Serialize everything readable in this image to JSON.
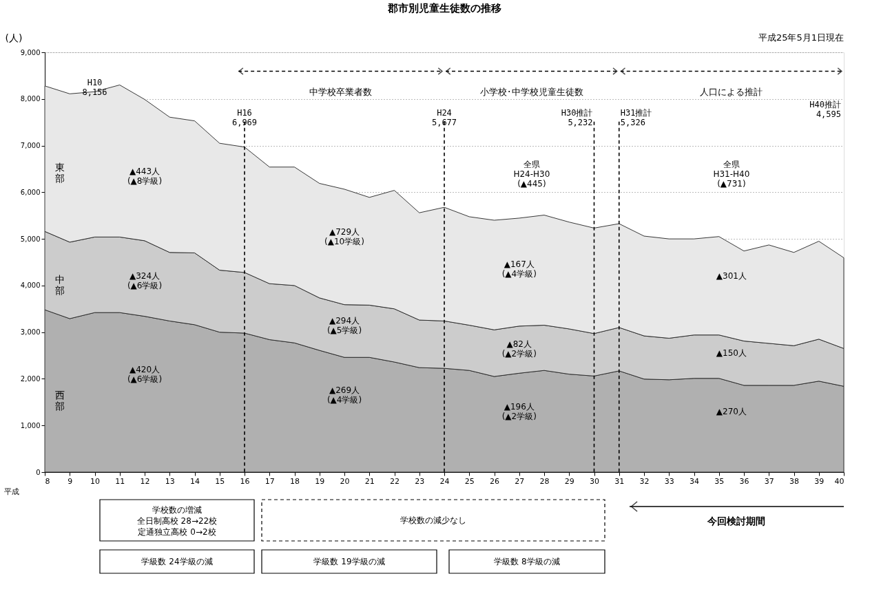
{
  "chart_data": {
    "type": "area",
    "stacked": true,
    "title": "郡市別児童生徒数の推移",
    "xlabel": "平成",
    "ylabel": "(人)",
    "x": [
      8,
      9,
      10,
      11,
      12,
      13,
      14,
      15,
      16,
      17,
      18,
      19,
      20,
      21,
      22,
      23,
      24,
      25,
      26,
      27,
      28,
      29,
      30,
      31,
      32,
      33,
      34,
      35,
      36,
      37,
      38,
      39,
      40
    ],
    "series": [
      {
        "name": "西部",
        "color": "#b0b0b0",
        "values": [
          3480,
          3290,
          3420,
          3420,
          3340,
          3240,
          3160,
          3000,
          2980,
          2840,
          2770,
          2610,
          2460,
          2460,
          2360,
          2240,
          2225,
          2180,
          2050,
          2120,
          2180,
          2100,
          2060,
          2170,
          1995,
          1980,
          2010,
          2010,
          1860,
          1860,
          1860,
          1950,
          1840
        ]
      },
      {
        "name": "中部",
        "color": "#cccccc",
        "values": [
          1680,
          1640,
          1620,
          1620,
          1620,
          1470,
          1540,
          1330,
          1300,
          1200,
          1230,
          1125,
          1130,
          1120,
          1140,
          1020,
          1015,
          970,
          1000,
          1010,
          970,
          970,
          910,
          930,
          925,
          890,
          930,
          930,
          950,
          900,
          850,
          900,
          810
        ]
      },
      {
        "name": "東部",
        "color": "#e8e8e8",
        "values": [
          3120,
          3180,
          3116,
          3260,
          3030,
          2900,
          2830,
          2720,
          2689,
          2500,
          2540,
          2455,
          2475,
          2310,
          2540,
          2300,
          2437,
          2325,
          2350,
          2315,
          2360,
          2290,
          2262,
          2226,
          2140,
          2130,
          2060,
          2110,
          1930,
          2110,
          2000,
          2100,
          1945
        ]
      }
    ],
    "xlim": [
      8,
      40
    ],
    "xticks": [
      8,
      9,
      10,
      11,
      12,
      13,
      14,
      15,
      16,
      17,
      18,
      19,
      20,
      21,
      22,
      23,
      24,
      25,
      26,
      27,
      28,
      29,
      30,
      31,
      32,
      33,
      34,
      35,
      36,
      37,
      38,
      39,
      40
    ],
    "ylim": [
      0,
      9000
    ],
    "yticks": [
      0,
      {
        "value": 1000,
        "label": "1,000"
      },
      {
        "value": 2000,
        "label": "2,000"
      },
      {
        "value": 3000,
        "label": "3,000"
      },
      {
        "value": 4000,
        "label": "4,000"
      },
      {
        "value": 5000,
        "label": "5,000"
      },
      {
        "value": 6000,
        "label": "6,000"
      },
      {
        "value": 7000,
        "label": "7,000"
      },
      {
        "value": 8000,
        "label": "8,000"
      },
      {
        "value": 9000,
        "label": "9,000"
      }
    ],
    "grid": "y",
    "legend": false,
    "ref_lines": [
      {
        "axis": "x",
        "value": 16,
        "label": "H16\n6,969",
        "line_style": "dashed"
      },
      {
        "axis": "x",
        "value": 24,
        "label": "H24\n5,677",
        "line_style": "dashed"
      },
      {
        "axis": "x",
        "value": 30,
        "label": "H30推計\n5,232",
        "line_style": "dashed"
      },
      {
        "axis": "x",
        "value": 31,
        "label": "H31推計\n5,326",
        "line_style": "dashed"
      }
    ],
    "annotations": [
      {
        "text": "H10\n8,156",
        "x": 10,
        "y": 8156
      },
      "平成25年5月1日現在",
      "▲443人\n(▲8学級)",
      "▲729人\n(▲10学級)",
      "▲167人\n(▲4学級)",
      "▲301人",
      "▲324人\n(▲6学級)",
      "▲294人\n(▲5学級)",
      "▲82人\n(▲2学級)",
      "▲150人",
      "▲420人\n(▲6学級)",
      "▲269人\n(▲4学級)",
      "▲196人\n(▲2学級)",
      "▲270人",
      "全県\nH24-H30\n(▲445)",
      "全県\nH31-H40\n(▲731)",
      "H40推計\n4,595",
      "中学校卒業者数",
      "小学校･中学校児童生徒数",
      "人口による推計",
      "学校数の増減",
      "全日制高校 28→22校",
      "定通独立高校 0→2校",
      "学校数の減少なし",
      "今回検討期間",
      "学級数 24学級の減",
      "学級数 19学級の減",
      "学級数 8学級の減"
    ]
  }
}
